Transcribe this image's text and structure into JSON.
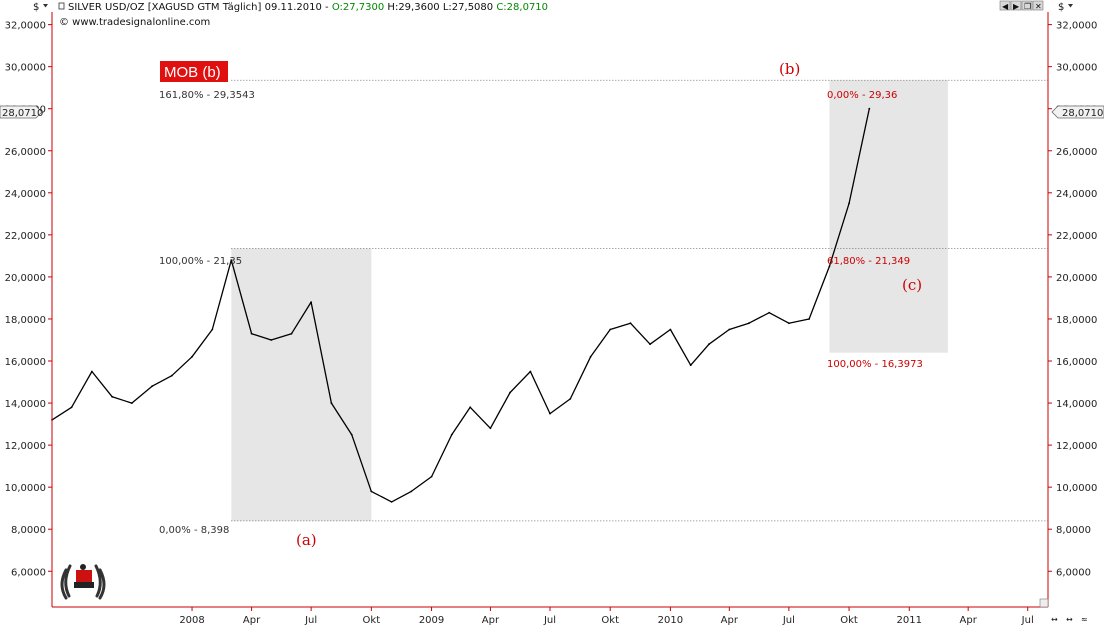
{
  "header": {
    "currency_left": "$",
    "currency_right": "$",
    "title_part": "SILVER USD/OZ [XAGUSD GTM  Täglich] 09.11.2010 - ",
    "open_part": "O:27,7300",
    "hl_part": " H:29,3600 L:27,5080 ",
    "close_part": "C:28,0710",
    "copyright": "© www.tradesignalonline.com"
  },
  "price_marker": "28,0710",
  "mob_label": "MOB (b)",
  "fib_left": {
    "top_text": "161,80% - 29,3543",
    "mid_text": "100,00% - 21,35",
    "bottom_text": "0,00% - 8,398"
  },
  "fib_right": {
    "top_text": "0,00% - 29,36",
    "mid_text": "61,80% - 21,349",
    "bottom_text": "100,00% - 16,3973"
  },
  "wave_labels": {
    "a": "(a)",
    "b": "(b)",
    "c": "(c)"
  },
  "colors": {
    "axis_red": "#cc0000",
    "mob_bg": "#e01010",
    "zone_fill": "#e6e6e6",
    "price_line": "#000000",
    "open_text": "#008800",
    "close_text": "#008800"
  },
  "chart_data": {
    "type": "line",
    "title": "SILVER USD/OZ [XAGUSD GTM  Täglich]",
    "xlabel": "",
    "ylabel": "",
    "ylim": [
      4.3,
      32.6
    ],
    "x_range": [
      "2007-06",
      "2011-08"
    ],
    "grid": false,
    "y_ticks": [
      "32,0000",
      "30,0000",
      "28,0000",
      "26,0000",
      "24,0000",
      "22,0000",
      "20,0000",
      "18,0000",
      "16,0000",
      "14,0000",
      "12,0000",
      "10,0000",
      "8,0000",
      "6,0000"
    ],
    "y_tick_values": [
      32,
      30,
      28,
      26,
      24,
      22,
      20,
      18,
      16,
      14,
      12,
      10,
      8,
      6
    ],
    "x_ticks": [
      "2008",
      "Apr",
      "Jul",
      "Okt",
      "2009",
      "Apr",
      "Jul",
      "Okt",
      "2010",
      "Apr",
      "Jul",
      "Okt",
      "2011",
      "Apr",
      "Jul"
    ],
    "x_tick_dates": [
      "2008-01",
      "2008-04",
      "2008-07",
      "2008-10",
      "2009-01",
      "2009-04",
      "2009-07",
      "2009-10",
      "2010-01",
      "2010-04",
      "2010-07",
      "2010-10",
      "2011-01",
      "2011-04",
      "2011-07"
    ],
    "series": [
      {
        "x": [
          "2007-06",
          "2007-07",
          "2007-08",
          "2007-09",
          "2007-10",
          "2007-11",
          "2007-12",
          "2008-01",
          "2008-02",
          "2008-03",
          "2008-04",
          "2008-05",
          "2008-06",
          "2008-07",
          "2008-08",
          "2008-09",
          "2008-10",
          "2008-11",
          "2008-12",
          "2009-01",
          "2009-02",
          "2009-03",
          "2009-04",
          "2009-05",
          "2009-06",
          "2009-07",
          "2009-08",
          "2009-09",
          "2009-10",
          "2009-11",
          "2009-12",
          "2010-01",
          "2010-02",
          "2010-03",
          "2010-04",
          "2010-05",
          "2010-06",
          "2010-07",
          "2010-08",
          "2010-09",
          "2010-10",
          "2010-11"
        ],
        "values": [
          13.2,
          13.8,
          15.5,
          14.3,
          14.0,
          14.8,
          15.3,
          16.2,
          17.5,
          20.8,
          17.3,
          17.0,
          17.3,
          18.8,
          14.0,
          12.5,
          9.8,
          9.3,
          9.8,
          10.5,
          12.5,
          13.8,
          12.8,
          14.5,
          15.5,
          13.5,
          14.2,
          16.2,
          17.5,
          17.8,
          16.8,
          17.5,
          15.8,
          16.8,
          17.5,
          17.8,
          18.3,
          17.8,
          18.0,
          20.5,
          23.5,
          28.0
        ]
      }
    ],
    "annotations": {
      "mob_level": 29.3543,
      "fib_100_level": 21.35,
      "low_a_level": 8.398,
      "target_100_level": 16.3973,
      "last_price": 28.071,
      "left_zone_dates": [
        "2008-03",
        "2008-10"
      ],
      "right_zone_dates": [
        "2010-09",
        "2011-03"
      ],
      "wave_a_date": "2008-10",
      "wave_b_date": "2010-11",
      "wave_c_date": "2011-01"
    }
  }
}
